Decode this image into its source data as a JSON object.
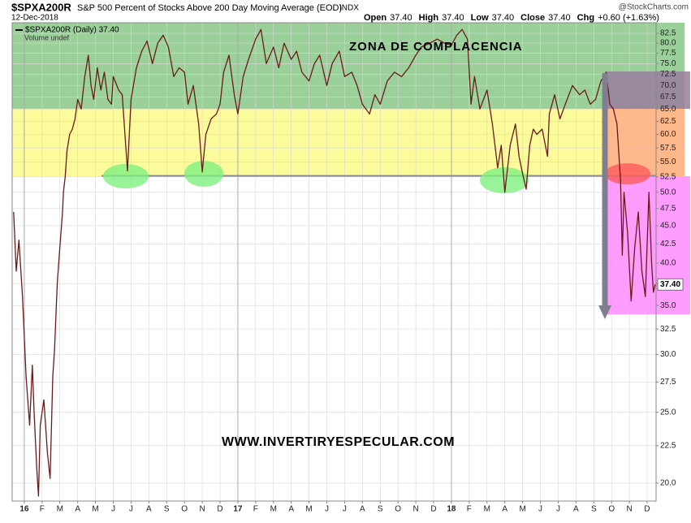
{
  "chart_data": {
    "type": "line",
    "title": "$SPXA200R",
    "subtitle": "S&P 500 Percent of Stocks Above 200 Day Moving Average (EOD)",
    "exchange": "INDX",
    "date": "12-Dec-2018",
    "watermark": "@StockCharts.com",
    "stats": [
      {
        "label": "Open",
        "value": "37.40"
      },
      {
        "label": "High",
        "value": "37.40"
      },
      {
        "label": "Low",
        "value": "37.40"
      },
      {
        "label": "Close",
        "value": "37.40"
      },
      {
        "label": "Chg",
        "value": "+0.60 (+1.63%)"
      }
    ],
    "volume_note": "Volume undef",
    "annotations": [
      "ZONA DE COMPLACENCIA",
      "WWW.INVERTIRYESPECULAR.COM"
    ],
    "log_scale": true,
    "grid": true,
    "xlim": [
      -0.68,
      35.5
    ],
    "xticks": [
      {
        "value": 0,
        "label": "16"
      },
      {
        "value": 1,
        "label": "F"
      },
      {
        "value": 2,
        "label": "M"
      },
      {
        "value": 3,
        "label": "A"
      },
      {
        "value": 4,
        "label": "M"
      },
      {
        "value": 5,
        "label": "J"
      },
      {
        "value": 6,
        "label": "J"
      },
      {
        "value": 7,
        "label": "A"
      },
      {
        "value": 8,
        "label": "S"
      },
      {
        "value": 9,
        "label": "O"
      },
      {
        "value": 10,
        "label": "N"
      },
      {
        "value": 11,
        "label": "D"
      },
      {
        "value": 12,
        "label": "17"
      },
      {
        "value": 13,
        "label": "F"
      },
      {
        "value": 14,
        "label": "M"
      },
      {
        "value": 15,
        "label": "A"
      },
      {
        "value": 16,
        "label": "M"
      },
      {
        "value": 17,
        "label": "J"
      },
      {
        "value": 18,
        "label": "J"
      },
      {
        "value": 19,
        "label": "A"
      },
      {
        "value": 20,
        "label": "S"
      },
      {
        "value": 21,
        "label": "O"
      },
      {
        "value": 22,
        "label": "N"
      },
      {
        "value": 23,
        "label": "D"
      },
      {
        "value": 24,
        "label": "18"
      },
      {
        "value": 25,
        "label": "F"
      },
      {
        "value": 26,
        "label": "M"
      },
      {
        "value": 27,
        "label": "A"
      },
      {
        "value": 28,
        "label": "M"
      },
      {
        "value": 29,
        "label": "J"
      },
      {
        "value": 30,
        "label": "J"
      },
      {
        "value": 31,
        "label": "A"
      },
      {
        "value": 32,
        "label": "S"
      },
      {
        "value": 33,
        "label": "O"
      },
      {
        "value": 34,
        "label": "N"
      },
      {
        "value": 35,
        "label": "D"
      }
    ],
    "ylim": [
      18.9,
      85.3
    ],
    "yticks": [
      {
        "value": 20,
        "label": "20.0"
      },
      22.5,
      {
        "value": 25,
        "label": "25.0"
      },
      27.5,
      {
        "value": 30,
        "label": "30.0"
      },
      32.5,
      {
        "value": 35,
        "label": "35.0"
      },
      37.5,
      {
        "value": 40,
        "label": "40.0"
      },
      42.5,
      {
        "value": 45,
        "label": "45.0"
      },
      47.5,
      {
        "value": 50,
        "label": "50.0"
      },
      52.5,
      {
        "value": 55,
        "label": "55.0"
      },
      57.5,
      {
        "value": 60,
        "label": "60.0"
      },
      62.5,
      {
        "value": 65,
        "label": "65.0"
      },
      67.5,
      {
        "value": 70,
        "label": "70.0"
      },
      72.5,
      {
        "value": 75,
        "label": "75.0"
      },
      77.5,
      {
        "value": 80,
        "label": "80.0"
      },
      82.5
    ],
    "series": [
      {
        "name": "$SPXA200R (Daily) 37.40",
        "color": "#6b1a1a",
        "last_label": "37.40",
        "x": [
          -0.6,
          -0.45,
          -0.3,
          -0.1,
          0.1,
          0.3,
          0.45,
          0.55,
          0.7,
          0.8,
          0.9,
          1.0,
          1.1,
          1.3,
          1.45,
          1.6,
          1.7,
          1.85,
          2.0,
          2.15,
          2.2,
          2.3,
          2.4,
          2.55,
          2.7,
          2.85,
          3.0,
          3.2,
          3.4,
          3.6,
          3.75,
          3.9,
          4.1,
          4.3,
          4.5,
          4.7,
          4.9,
          5.0,
          5.3,
          5.5,
          5.8,
          6.0,
          6.3,
          6.6,
          6.9,
          7.2,
          7.5,
          7.8,
          8.1,
          8.4,
          8.7,
          9.0,
          9.2,
          9.5,
          9.8,
          10.0,
          10.2,
          10.5,
          10.8,
          11.0,
          11.2,
          11.5,
          11.8,
          12.0,
          12.3,
          12.6,
          13.0,
          13.3,
          13.6,
          14.0,
          14.3,
          14.6,
          15.0,
          15.3,
          15.6,
          16.0,
          16.3,
          16.6,
          17.0,
          17.3,
          17.7,
          18.0,
          18.4,
          18.7,
          19.0,
          19.4,
          19.7,
          20.0,
          20.4,
          20.8,
          21.2,
          21.6,
          22.0,
          22.3,
          22.8,
          23.2,
          23.6,
          24.0,
          24.3,
          24.6,
          24.9,
          25.1,
          25.3,
          25.6,
          26.0,
          26.3,
          26.6,
          26.8,
          27.0,
          27.3,
          27.6,
          27.8,
          28.0,
          28.2,
          28.4,
          28.6,
          28.8,
          29.1,
          29.4,
          29.5,
          29.8,
          30.1,
          30.4,
          30.8,
          31.2,
          31.5,
          31.8,
          32.1,
          32.4,
          32.7,
          32.9,
          33.1,
          33.3,
          33.5,
          33.6,
          33.7,
          33.9,
          34.1,
          34.3,
          34.5,
          34.7,
          34.9,
          35.1,
          35.25,
          35.35,
          35.45
        ],
        "values": [
          47,
          39,
          43,
          36,
          28,
          24,
          29,
          25,
          21,
          19.2,
          24,
          25,
          26,
          22,
          20.3,
          28,
          30.5,
          37.5,
          42,
          47,
          50,
          52.5,
          57,
          60,
          61,
          63,
          67,
          65,
          72,
          77,
          70,
          67,
          74,
          69,
          73,
          67,
          66,
          72,
          69,
          68,
          53.5,
          67,
          74,
          78,
          80.5,
          75,
          80,
          82,
          79,
          72,
          74,
          73,
          66,
          70,
          62,
          53.3,
          60,
          63,
          64,
          66,
          73,
          77,
          68,
          64,
          72,
          76,
          81,
          83.5,
          75,
          79,
          74,
          80,
          76,
          78,
          73,
          71,
          75,
          77,
          70,
          75,
          78,
          72,
          73,
          70,
          66,
          64,
          68,
          66,
          71,
          73,
          72,
          74,
          77,
          79,
          80,
          81,
          80,
          79.5,
          82,
          83.5,
          81,
          66,
          72,
          65,
          69,
          62,
          54,
          58,
          50,
          58,
          62,
          56,
          53,
          50.5,
          58,
          61,
          60,
          61,
          56,
          64,
          68,
          63,
          66,
          70,
          68,
          69,
          66,
          67,
          71,
          73,
          66,
          65,
          62,
          52,
          41,
          50,
          44,
          35.5,
          42,
          47,
          39,
          36,
          50,
          40,
          36.5,
          37.4
        ]
      }
    ]
  }
}
